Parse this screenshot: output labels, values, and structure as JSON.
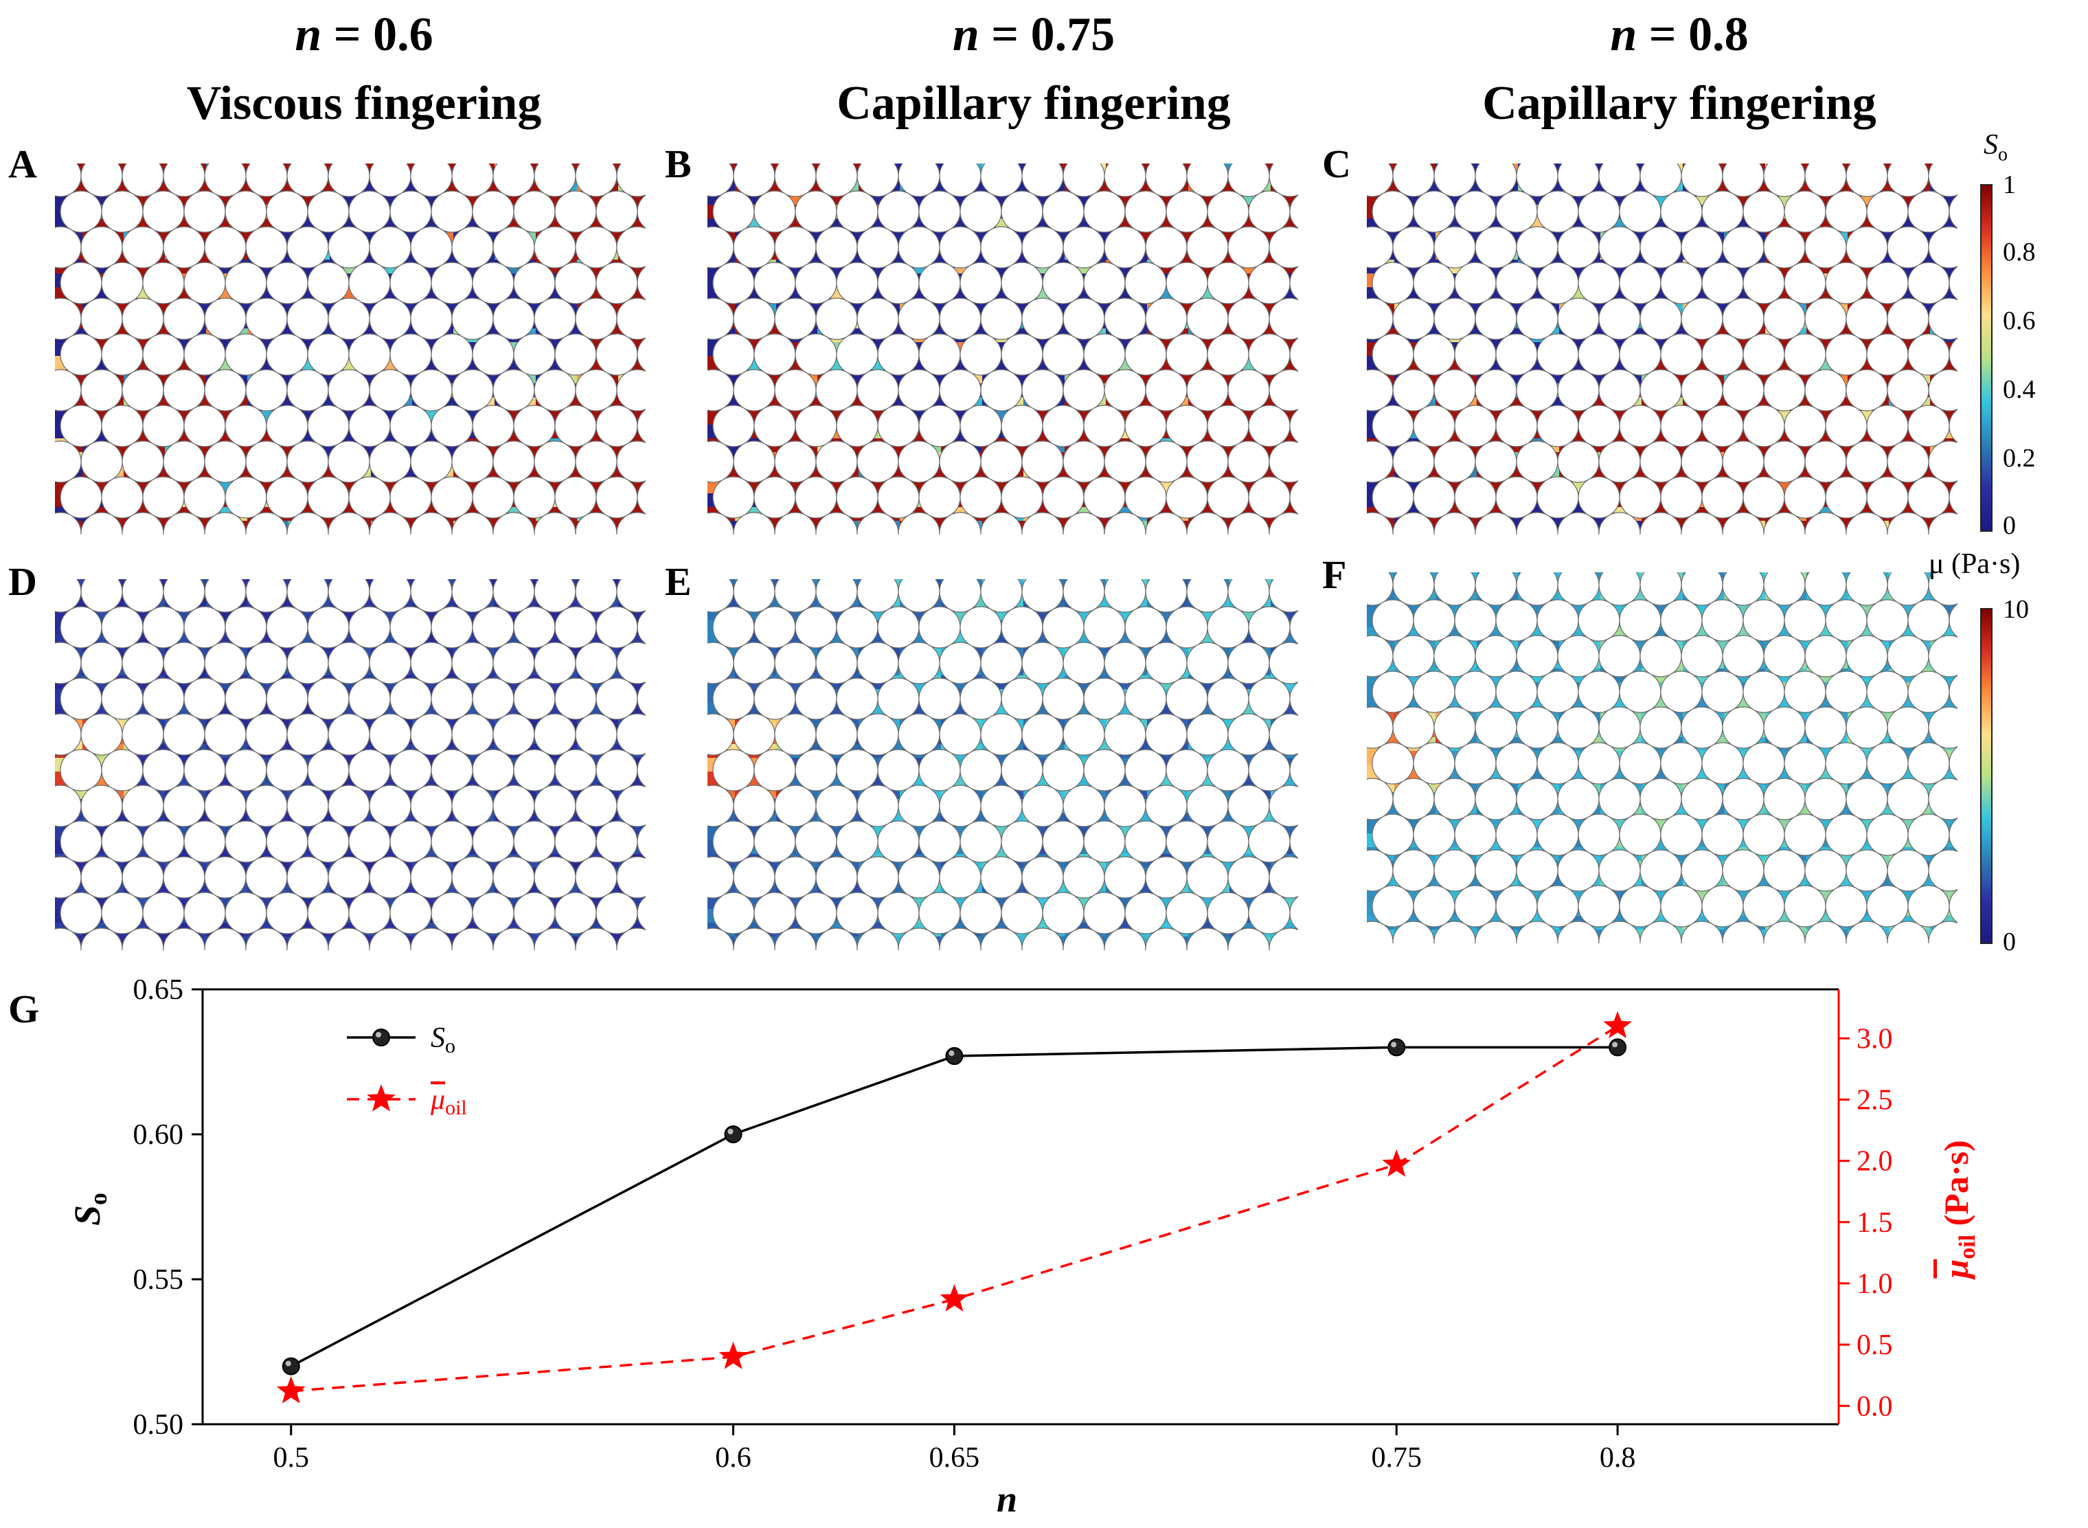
{
  "columns": [
    {
      "n_label": "n",
      "n_value": " = 0.6",
      "regime": "Viscous fingering"
    },
    {
      "n_label": "n",
      "n_value": " = 0.75",
      "regime": "Capillary fingering"
    },
    {
      "n_label": "n",
      "n_value": " = 0.8",
      "regime": "Capillary fingering"
    }
  ],
  "panel_labels": [
    "A",
    "B",
    "C",
    "D",
    "E",
    "F",
    "G"
  ],
  "colorbars": {
    "saturation": {
      "symbol": "S",
      "subscript": "o",
      "ticks": [
        "1",
        "0.8",
        "0.6",
        "0.4",
        "0.2",
        "0"
      ]
    },
    "viscosity": {
      "title": "μ (Pa·s)",
      "ticks": [
        "10",
        "0"
      ]
    }
  },
  "colors": {
    "high": "#a50f15",
    "low": "#2b2f9e",
    "mid": "#35c6e0",
    "accent_red": "#ff0000"
  },
  "chart_data": {
    "type": "line",
    "xlabel": "n",
    "ylabel_left": "S",
    "ylabel_left_sub": "o",
    "ylabel_right": "μ",
    "ylabel_right_sub": "oil",
    "ylabel_right_unit": " (Pa·s)",
    "x_ticks": [
      "0.5",
      "0.6",
      "0.65",
      "0.75",
      "0.8"
    ],
    "x_tick_values": [
      0.5,
      0.6,
      0.65,
      0.75,
      0.8
    ],
    "xlim": [
      0.48,
      0.85
    ],
    "ylim_left": [
      0.5,
      0.65
    ],
    "left_ticks": [
      "0.50",
      "0.55",
      "0.60",
      "0.65"
    ],
    "ylim_right": [
      -0.15,
      3.4
    ],
    "right_ticks": [
      "0.0",
      "0.5",
      "1.0",
      "1.5",
      "2.0",
      "2.5",
      "3.0"
    ],
    "legend_position": "top-left",
    "series": [
      {
        "name": "S",
        "name_sub": "o",
        "axis": "left",
        "color": "#000000",
        "marker": "circle",
        "line": "solid",
        "x": [
          0.5,
          0.6,
          0.65,
          0.75,
          0.8
        ],
        "y": [
          0.52,
          0.6,
          0.627,
          0.63,
          0.63
        ]
      },
      {
        "name": "μ",
        "name_sub": "oil",
        "axis": "right",
        "color": "#ff0000",
        "marker": "star",
        "line": "dashed",
        "x": [
          0.5,
          0.6,
          0.65,
          0.75,
          0.8
        ],
        "y": [
          0.12,
          0.4,
          0.87,
          1.97,
          3.1
        ]
      }
    ]
  }
}
